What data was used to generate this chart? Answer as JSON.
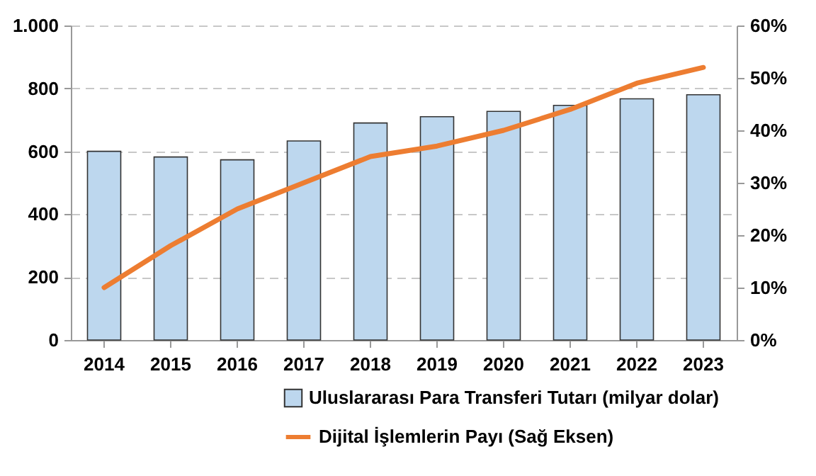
{
  "chart_data": {
    "type": "bar",
    "categories": [
      "2014",
      "2015",
      "2016",
      "2017",
      "2018",
      "2019",
      "2020",
      "2021",
      "2022",
      "2023"
    ],
    "series": [
      {
        "name": "Uluslararası Para Transferi Tutarı (milyar dolar)",
        "color": "#bdd7ee",
        "values": [
          600,
          582,
          573,
          633,
          690,
          710,
          727,
          746,
          767,
          780
        ]
      },
      {
        "name": "Dijital İşlemlerin Payı (Sağ Eksen)",
        "type": "line",
        "axis": "y2",
        "color": "#ed7d31",
        "values": [
          10,
          18,
          25,
          30,
          35,
          37,
          40,
          44,
          49,
          52
        ]
      }
    ],
    "ylim": [
      0,
      1000
    ],
    "yticks": [
      0,
      200,
      400,
      600,
      800,
      {
        "value": 1000,
        "label": "1.000"
      }
    ],
    "y2lim": [
      0,
      60
    ],
    "y2ticks": [
      {
        "value": 0,
        "label": "0%"
      },
      {
        "value": 10,
        "label": "10%"
      },
      {
        "value": 20,
        "label": "20%"
      },
      {
        "value": 30,
        "label": "30%"
      },
      {
        "value": 40,
        "label": "40%"
      },
      {
        "value": 50,
        "label": "50%"
      },
      {
        "value": 60,
        "label": "60%"
      }
    ],
    "grid": "y",
    "legend": "bottom"
  }
}
